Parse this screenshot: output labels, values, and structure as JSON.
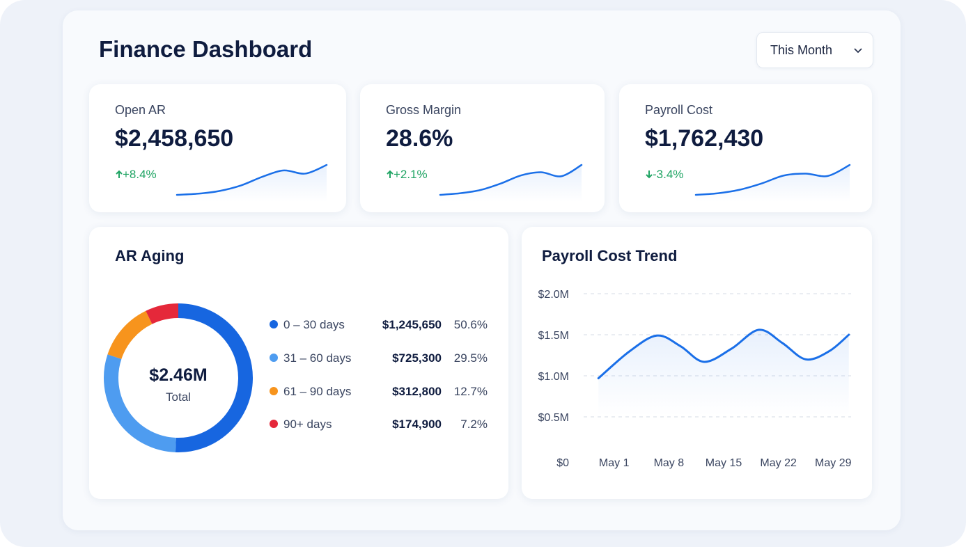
{
  "header": {
    "title": "Finance Dashboard",
    "filter": "This Month"
  },
  "kpis": [
    {
      "label": "Open AR",
      "value": "$2,458,650",
      "change": "+8.4%",
      "direction": "up",
      "trend": [
        0,
        0.3,
        1,
        2.4,
        4.6,
        6.2,
        5.4,
        7.6
      ]
    },
    {
      "label": "Gross Margin",
      "value": "28.6%",
      "change": "+2.1%",
      "direction": "up",
      "trend": [
        0,
        0.4,
        1.2,
        2.8,
        4.8,
        5.6,
        4.6,
        7.4
      ]
    },
    {
      "label": "Payroll Cost",
      "value": "$1,762,430",
      "change": "-3.4%",
      "direction": "down",
      "trend": [
        0,
        0.4,
        1.3,
        2.9,
        4.9,
        5.4,
        4.8,
        7.6
      ]
    }
  ],
  "ar_aging": {
    "title": "AR Aging",
    "total": "$2.46M",
    "total_label": "Total",
    "chart_data": {
      "type": "pie",
      "donut": true,
      "categories": [
        "0 – 30 days",
        "31 – 60 days",
        "61 – 90 days",
        "90+ days"
      ],
      "values": [
        50.6,
        29.5,
        12.7,
        7.2
      ],
      "value_labels": [
        "50.6%",
        "29.5%",
        "12.7%",
        "7.2%"
      ],
      "amounts": [
        "$1,245,650",
        "$725,300",
        "$312,800",
        "$174,900"
      ],
      "colors": [
        "#1766e0",
        "#4e9cf0",
        "#f7941d",
        "#e5283a"
      ]
    }
  },
  "payroll_trend": {
    "title": "Payroll Cost Trend",
    "chart_data": {
      "type": "line",
      "color": "#1a6fe8",
      "grid": true,
      "x": [
        -1,
        3,
        6.5,
        9.5,
        12.5,
        16,
        19.5,
        22.5,
        25.5,
        28.5,
        31
      ],
      "values": [
        0.97,
        1.3,
        1.49,
        1.36,
        1.17,
        1.33,
        1.56,
        1.4,
        1.2,
        1.3,
        1.5
      ],
      "xlim": [
        -2,
        32
      ],
      "xticks": [
        {
          "value": 1,
          "label": "May 1"
        },
        {
          "value": 8,
          "label": "May 8"
        },
        {
          "value": 15,
          "label": "May 15"
        },
        {
          "value": 22,
          "label": "May 22"
        },
        {
          "value": 29,
          "label": "May 29"
        }
      ],
      "ylim": [
        0,
        2
      ],
      "yticks": [
        {
          "value": 0,
          "label": "$0"
        },
        {
          "value": 0.5,
          "label": "$0.5M"
        },
        {
          "value": 1,
          "label": "$1.0M"
        },
        {
          "value": 1.5,
          "label": "$1.5M"
        },
        {
          "value": 2,
          "label": "$2.0M"
        }
      ]
    }
  }
}
